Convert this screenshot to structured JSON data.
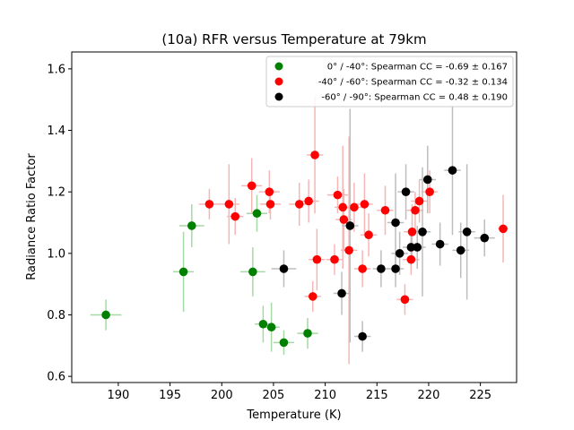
{
  "chart_data": {
    "type": "scatter",
    "title": "(10a) RFR versus Temperature at 79km",
    "xlabel": "Temperature (K)",
    "ylabel": "Radiance Ratio Factor",
    "xlim": [
      185.5,
      228.5
    ],
    "ylim": [
      0.58,
      1.655
    ],
    "xticks": [
      190,
      195,
      200,
      205,
      210,
      215,
      220,
      225
    ],
    "yticks": [
      0.6,
      0.8,
      1.0,
      1.2,
      1.4,
      1.6
    ],
    "legend_position": "top-right",
    "grid": false,
    "series": [
      {
        "name": "0° / -40°: Spearman CC = -0.69 ± 0.167",
        "color": "#008000",
        "errcolor": "#a6d9a6",
        "points": [
          {
            "x": 188.8,
            "y": 0.8,
            "xerr": 1.5,
            "yerr": 0.05
          },
          {
            "x": 196.3,
            "y": 0.94,
            "xerr": 1.0,
            "yerr": 0.13
          },
          {
            "x": 197.1,
            "y": 1.09,
            "xerr": 1.2,
            "yerr": 0.07
          },
          {
            "x": 203.0,
            "y": 0.94,
            "xerr": 1.2,
            "yerr": 0.08
          },
          {
            "x": 203.4,
            "y": 1.13,
            "xerr": 1.0,
            "yerr": 0.06
          },
          {
            "x": 204.0,
            "y": 0.77,
            "xerr": 0.8,
            "yerr": 0.06
          },
          {
            "x": 204.8,
            "y": 0.76,
            "xerr": 0.8,
            "yerr": 0.08
          },
          {
            "x": 206.0,
            "y": 0.71,
            "xerr": 1.0,
            "yerr": 0.04
          },
          {
            "x": 208.3,
            "y": 0.74,
            "xerr": 1.0,
            "yerr": 0.05
          }
        ]
      },
      {
        "name": "-40° / -60°: Spearman CC = -0.32 ± 0.134",
        "color": "#ff0000",
        "errcolor": "#f7b6b6",
        "points": [
          {
            "x": 198.8,
            "y": 1.16,
            "xerr": 1.0,
            "yerr": 0.05
          },
          {
            "x": 200.7,
            "y": 1.16,
            "xerr": 1.0,
            "yerr": 0.13
          },
          {
            "x": 201.3,
            "y": 1.12,
            "xerr": 0.8,
            "yerr": 0.06
          },
          {
            "x": 202.9,
            "y": 1.22,
            "xerr": 1.0,
            "yerr": 0.09
          },
          {
            "x": 204.6,
            "y": 1.2,
            "xerr": 1.0,
            "yerr": 0.07
          },
          {
            "x": 204.7,
            "y": 1.16,
            "xerr": 1.0,
            "yerr": 0.05
          },
          {
            "x": 207.5,
            "y": 1.16,
            "xerr": 1.0,
            "yerr": 0.07
          },
          {
            "x": 208.4,
            "y": 1.17,
            "xerr": 1.0,
            "yerr": 0.07
          },
          {
            "x": 208.8,
            "y": 0.86,
            "xerr": 0.8,
            "yerr": 0.05
          },
          {
            "x": 209.0,
            "y": 1.32,
            "xerr": 0.8,
            "yerr": 0.19
          },
          {
            "x": 209.2,
            "y": 0.98,
            "xerr": 0.8,
            "yerr": 0.1
          },
          {
            "x": 210.9,
            "y": 0.98,
            "xerr": 0.8,
            "yerr": 0.05
          },
          {
            "x": 211.2,
            "y": 1.19,
            "xerr": 1.0,
            "yerr": 0.06
          },
          {
            "x": 211.7,
            "y": 1.15,
            "xerr": 0.8,
            "yerr": 0.2
          },
          {
            "x": 211.8,
            "y": 1.11,
            "xerr": 0.8,
            "yerr": 0.1
          },
          {
            "x": 212.3,
            "y": 1.01,
            "xerr": 0.8,
            "yerr": 0.37
          },
          {
            "x": 212.8,
            "y": 1.15,
            "xerr": 0.8,
            "yerr": 0.08
          },
          {
            "x": 213.6,
            "y": 0.95,
            "xerr": 0.8,
            "yerr": 0.06
          },
          {
            "x": 213.8,
            "y": 1.16,
            "xerr": 0.8,
            "yerr": 0.1
          },
          {
            "x": 214.2,
            "y": 1.06,
            "xerr": 0.8,
            "yerr": 0.07
          },
          {
            "x": 215.8,
            "y": 1.14,
            "xerr": 0.8,
            "yerr": 0.08
          },
          {
            "x": 217.7,
            "y": 0.85,
            "xerr": 0.8,
            "yerr": 0.05
          },
          {
            "x": 218.3,
            "y": 0.98,
            "xerr": 0.8,
            "yerr": 0.05
          },
          {
            "x": 218.4,
            "y": 1.07,
            "xerr": 0.8,
            "yerr": 0.09
          },
          {
            "x": 218.7,
            "y": 1.14,
            "xerr": 0.8,
            "yerr": 0.06
          },
          {
            "x": 219.1,
            "y": 1.17,
            "xerr": 0.8,
            "yerr": 0.07
          },
          {
            "x": 220.1,
            "y": 1.2,
            "xerr": 0.8,
            "yerr": 0.07
          },
          {
            "x": 227.2,
            "y": 1.08,
            "xerr": 0.5,
            "yerr": 0.11
          }
        ]
      },
      {
        "name": "-60° / -90°: Spearman CC =  0.48 ± 0.190",
        "color": "#000000",
        "errcolor": "#bdbdbd",
        "points": [
          {
            "x": 206.0,
            "y": 0.95,
            "xerr": 1.2,
            "yerr": 0.06
          },
          {
            "x": 211.6,
            "y": 0.87,
            "xerr": 0.8,
            "yerr": 0.07
          },
          {
            "x": 212.4,
            "y": 1.09,
            "xerr": 0.8,
            "yerr": 0.38
          },
          {
            "x": 213.6,
            "y": 0.73,
            "xerr": 0.8,
            "yerr": 0.05
          },
          {
            "x": 215.4,
            "y": 0.95,
            "xerr": 0.8,
            "yerr": 0.06
          },
          {
            "x": 216.8,
            "y": 0.95,
            "xerr": 0.8,
            "yerr": 0.06
          },
          {
            "x": 216.8,
            "y": 1.1,
            "xerr": 0.8,
            "yerr": 0.16
          },
          {
            "x": 217.2,
            "y": 1.0,
            "xerr": 0.8,
            "yerr": 0.07
          },
          {
            "x": 217.8,
            "y": 1.2,
            "xerr": 0.8,
            "yerr": 0.09
          },
          {
            "x": 218.3,
            "y": 1.02,
            "xerr": 0.8,
            "yerr": 0.06
          },
          {
            "x": 218.9,
            "y": 1.02,
            "xerr": 0.8,
            "yerr": 0.07
          },
          {
            "x": 219.4,
            "y": 1.07,
            "xerr": 0.8,
            "yerr": 0.21
          },
          {
            "x": 219.9,
            "y": 1.24,
            "xerr": 0.8,
            "yerr": 0.11
          },
          {
            "x": 221.1,
            "y": 1.03,
            "xerr": 0.8,
            "yerr": 0.07
          },
          {
            "x": 222.3,
            "y": 1.27,
            "xerr": 0.8,
            "yerr": 0.21
          },
          {
            "x": 223.1,
            "y": 1.01,
            "xerr": 0.8,
            "yerr": 0.09
          },
          {
            "x": 223.7,
            "y": 1.07,
            "xerr": 0.8,
            "yerr": 0.22
          },
          {
            "x": 225.4,
            "y": 1.05,
            "xerr": 1.0,
            "yerr": 0.06
          }
        ]
      }
    ]
  }
}
